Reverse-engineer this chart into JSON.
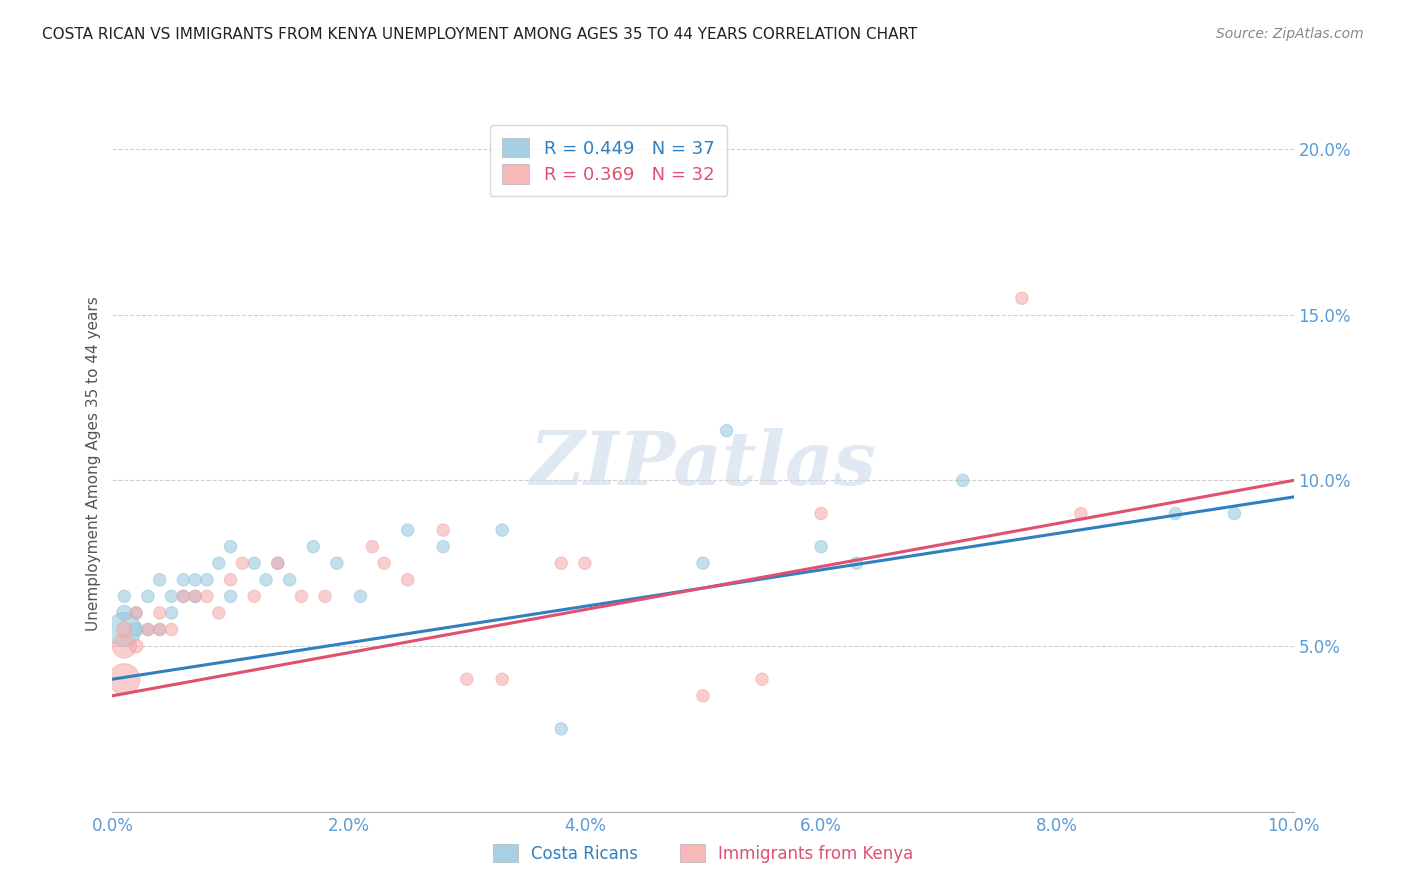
{
  "title": "COSTA RICAN VS IMMIGRANTS FROM KENYA UNEMPLOYMENT AMONG AGES 35 TO 44 YEARS CORRELATION CHART",
  "source": "Source: ZipAtlas.com",
  "ylabel": "Unemployment Among Ages 35 to 44 years",
  "xlim": [
    0.0,
    0.1
  ],
  "ylim": [
    0.0,
    0.21
  ],
  "xticks": [
    0.0,
    0.02,
    0.04,
    0.06,
    0.08,
    0.1
  ],
  "xticklabels": [
    "0.0%",
    "2.0%",
    "4.0%",
    "6.0%",
    "8.0%",
    "10.0%"
  ],
  "yticks": [
    0.05,
    0.1,
    0.15,
    0.2
  ],
  "yticklabels": [
    "5.0%",
    "10.0%",
    "15.0%",
    "20.0%"
  ],
  "legend1_label": "R = 0.449   N = 37",
  "legend2_label": "R = 0.369   N = 32",
  "legend_bottom_label1": "Costa Ricans",
  "legend_bottom_label2": "Immigrants from Kenya",
  "blue_color": "#92c5de",
  "pink_color": "#f4a6a6",
  "blue_line_color": "#3080c0",
  "pink_line_color": "#e05070",
  "axis_color": "#5b9bd5",
  "grid_color": "#d0d0d0",
  "blue_x": [
    0.001,
    0.001,
    0.001,
    0.002,
    0.002,
    0.003,
    0.003,
    0.004,
    0.004,
    0.005,
    0.005,
    0.006,
    0.006,
    0.007,
    0.007,
    0.008,
    0.009,
    0.01,
    0.01,
    0.012,
    0.013,
    0.014,
    0.015,
    0.017,
    0.019,
    0.021,
    0.025,
    0.028,
    0.033,
    0.038,
    0.05,
    0.052,
    0.06,
    0.063,
    0.072,
    0.09,
    0.095
  ],
  "blue_y": [
    0.055,
    0.06,
    0.065,
    0.055,
    0.06,
    0.055,
    0.065,
    0.055,
    0.07,
    0.06,
    0.065,
    0.065,
    0.07,
    0.065,
    0.07,
    0.07,
    0.075,
    0.065,
    0.08,
    0.075,
    0.07,
    0.075,
    0.07,
    0.08,
    0.075,
    0.065,
    0.085,
    0.08,
    0.085,
    0.025,
    0.075,
    0.115,
    0.08,
    0.075,
    0.1,
    0.09,
    0.09
  ],
  "blue_s": [
    600,
    120,
    80,
    100,
    80,
    80,
    80,
    80,
    80,
    80,
    80,
    80,
    80,
    80,
    80,
    80,
    80,
    80,
    80,
    80,
    80,
    80,
    80,
    80,
    80,
    80,
    80,
    80,
    80,
    80,
    80,
    80,
    80,
    80,
    80,
    80,
    80
  ],
  "pink_x": [
    0.001,
    0.001,
    0.001,
    0.002,
    0.002,
    0.003,
    0.004,
    0.004,
    0.005,
    0.006,
    0.007,
    0.008,
    0.009,
    0.01,
    0.011,
    0.012,
    0.014,
    0.016,
    0.018,
    0.022,
    0.023,
    0.025,
    0.028,
    0.03,
    0.033,
    0.038,
    0.04,
    0.05,
    0.055,
    0.06,
    0.077,
    0.082
  ],
  "pink_y": [
    0.04,
    0.05,
    0.055,
    0.05,
    0.06,
    0.055,
    0.055,
    0.06,
    0.055,
    0.065,
    0.065,
    0.065,
    0.06,
    0.07,
    0.075,
    0.065,
    0.075,
    0.065,
    0.065,
    0.08,
    0.075,
    0.07,
    0.085,
    0.04,
    0.04,
    0.075,
    0.075,
    0.035,
    0.04,
    0.09,
    0.155,
    0.09
  ],
  "pink_s": [
    500,
    300,
    120,
    100,
    80,
    80,
    80,
    80,
    80,
    80,
    80,
    80,
    80,
    80,
    80,
    80,
    80,
    80,
    80,
    80,
    80,
    80,
    80,
    80,
    80,
    80,
    80,
    80,
    80,
    80,
    80,
    80
  ],
  "blue_trend": [
    0.04,
    0.095
  ],
  "pink_trend": [
    0.035,
    0.1
  ]
}
